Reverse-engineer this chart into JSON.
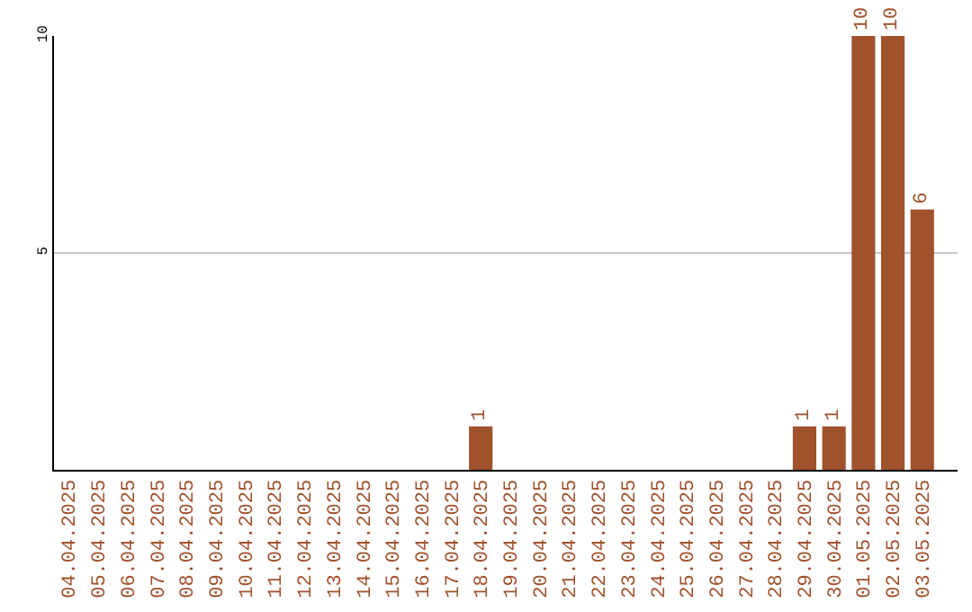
{
  "chart_data": {
    "type": "bar",
    "categories": [
      "04.04.2025",
      "05.04.2025",
      "06.04.2025",
      "07.04.2025",
      "08.04.2025",
      "09.04.2025",
      "10.04.2025",
      "11.04.2025",
      "12.04.2025",
      "13.04.2025",
      "14.04.2025",
      "15.04.2025",
      "16.04.2025",
      "17.04.2025",
      "18.04.2025",
      "19.04.2025",
      "20.04.2025",
      "21.04.2025",
      "22.04.2025",
      "23.04.2025",
      "24.04.2025",
      "25.04.2025",
      "26.04.2025",
      "27.04.2025",
      "28.04.2025",
      "29.04.2025",
      "30.04.2025",
      "01.05.2025",
      "02.05.2025",
      "03.05.2025"
    ],
    "values": [
      0,
      0,
      0,
      0,
      0,
      0,
      0,
      0,
      0,
      0,
      0,
      0,
      0,
      0,
      1,
      0,
      0,
      0,
      0,
      0,
      0,
      0,
      0,
      0,
      0,
      1,
      1,
      10,
      10,
      6
    ],
    "value_labels": [
      null,
      null,
      null,
      null,
      null,
      null,
      null,
      null,
      null,
      null,
      null,
      null,
      null,
      null,
      "1",
      null,
      null,
      null,
      null,
      null,
      null,
      null,
      null,
      null,
      null,
      "1",
      "1",
      "10",
      "10",
      "6"
    ],
    "color": "#a0522d",
    "ylim": [
      0,
      10
    ],
    "yticks": [
      5,
      10
    ],
    "grid": "y",
    "legend": false
  }
}
